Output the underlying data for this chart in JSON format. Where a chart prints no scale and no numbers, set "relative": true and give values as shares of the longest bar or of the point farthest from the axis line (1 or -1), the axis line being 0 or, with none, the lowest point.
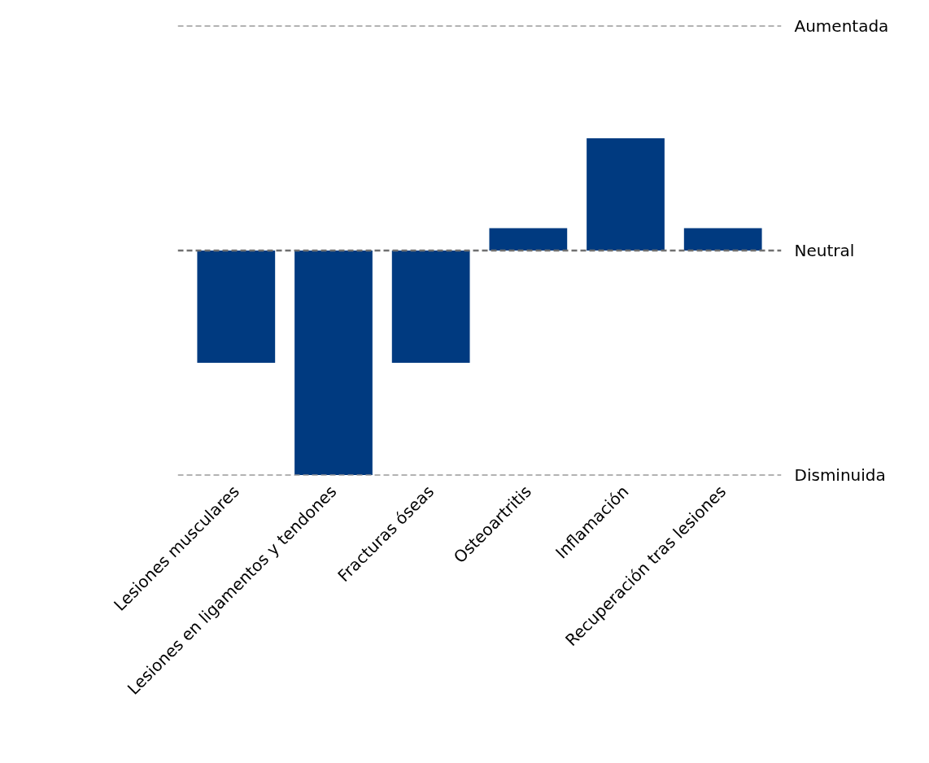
{
  "chart_data": {
    "type": "bar",
    "categories": [
      "Lesiones musculares",
      "Lesiones en ligamentos y tendones",
      "Fracturas óseas",
      "Osteoartritis",
      "Inflamación",
      "Recuperación tras lesiones"
    ],
    "values": [
      -0.5,
      -1,
      -0.5,
      0.1,
      0.5,
      0.1
    ],
    "color": "#003a80",
    "relative": true,
    "ref_lines": [
      {
        "axis": "y",
        "value": 1,
        "label": "Aumentada",
        "color": "#999999",
        "line_style": "dashed"
      },
      {
        "axis": "y",
        "value": 0,
        "label": "Neutral",
        "color": "#707070",
        "line_style": "dashed"
      },
      {
        "axis": "y",
        "value": -1,
        "label": "Disminuida",
        "color": "#999999",
        "line_style": "dashed"
      }
    ]
  }
}
